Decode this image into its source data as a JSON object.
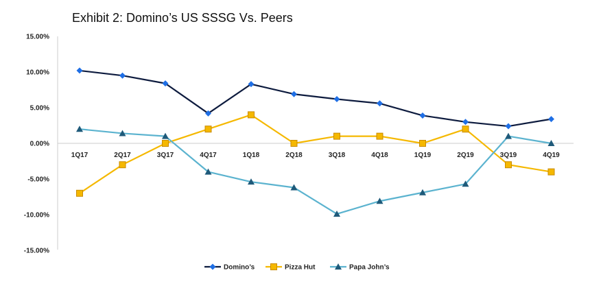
{
  "chart_data": {
    "type": "line",
    "title": "Exhibit 2: Domino’s US SSSG Vs. Peers",
    "xlabel": "",
    "ylabel": "",
    "categories": [
      "1Q17",
      "2Q17",
      "3Q17",
      "4Q17",
      "1Q18",
      "2Q18",
      "3Q18",
      "4Q18",
      "1Q19",
      "2Q19",
      "3Q19",
      "4Q19"
    ],
    "ylim": [
      -15,
      15
    ],
    "yticks": [
      15,
      10,
      5,
      0,
      -5,
      -10,
      -15
    ],
    "ytick_labels": [
      "15.00%",
      "10.00%",
      "5.00%",
      "0.00%",
      "-5.00%",
      "-10.00%",
      "-15.00%"
    ],
    "grid": false,
    "legend_position": "bottom",
    "series": [
      {
        "name": "Domino’s",
        "color": "#0d1b3e",
        "marker_color": "#1f6fe5",
        "marker": "diamond",
        "values": [
          10.2,
          9.5,
          8.4,
          4.2,
          8.3,
          6.9,
          6.2,
          5.6,
          3.9,
          3.0,
          2.4,
          3.4
        ]
      },
      {
        "name": "Pizza Hut",
        "color": "#f5b800",
        "marker_color": "#f5b800",
        "marker": "square",
        "values": [
          -7.0,
          -3.0,
          0.0,
          2.0,
          4.0,
          0.0,
          1.0,
          1.0,
          0.0,
          2.0,
          -3.0,
          -4.0
        ]
      },
      {
        "name": "Papa John’s",
        "color": "#5bb3cf",
        "marker_color": "#1f5a7a",
        "marker": "triangle",
        "values": [
          2.0,
          1.4,
          1.0,
          -4.0,
          -5.4,
          -6.2,
          -9.9,
          -8.1,
          -6.9,
          -5.7,
          1.0,
          0.0
        ]
      }
    ]
  }
}
